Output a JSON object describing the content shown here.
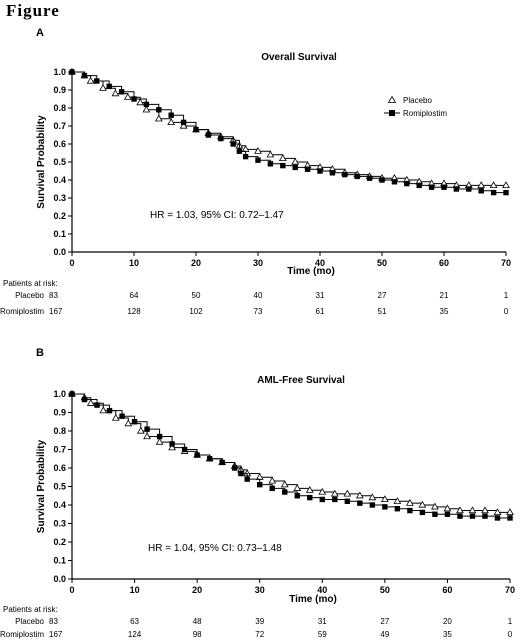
{
  "figure_label": "Figure",
  "chart_data": [
    {
      "type": "line",
      "panel_label": "A",
      "title": "Overall Survival",
      "xlabel": "Time (mo)",
      "ylabel": "Survival Probability",
      "xlim": [
        0,
        70
      ],
      "ylim": [
        0,
        1.0
      ],
      "x_ticks": [
        "0",
        "10",
        "20",
        "30",
        "40",
        "50",
        "60",
        "70"
      ],
      "y_ticks": [
        "0.0",
        "0.1",
        "0.2",
        "0.3",
        "0.4",
        "0.5",
        "0.6",
        "0.7",
        "0.8",
        "0.9",
        "1.0"
      ],
      "grid": false,
      "legend_position": "top-right",
      "annotation": "HR = 1.03, 95% CI: 0.72–1.47",
      "series": [
        {
          "name": "Placebo",
          "marker": "open-triangle",
          "color": "#000000",
          "x": [
            0,
            2,
            3,
            5,
            7,
            9,
            11,
            12,
            14,
            16,
            18,
            20,
            22,
            24,
            26,
            27,
            28,
            30,
            32,
            34,
            36,
            38,
            40,
            42,
            44,
            46,
            48,
            50,
            52,
            54,
            56,
            58,
            60,
            62,
            64,
            66,
            68,
            70
          ],
          "y": [
            1.0,
            0.98,
            0.95,
            0.91,
            0.88,
            0.86,
            0.83,
            0.79,
            0.74,
            0.72,
            0.7,
            0.68,
            0.66,
            0.64,
            0.62,
            0.59,
            0.57,
            0.56,
            0.54,
            0.52,
            0.5,
            0.48,
            0.47,
            0.46,
            0.44,
            0.43,
            0.42,
            0.41,
            0.41,
            0.4,
            0.39,
            0.38,
            0.38,
            0.37,
            0.37,
            0.37,
            0.37,
            0.37
          ]
        },
        {
          "name": "Romiplostim",
          "marker": "filled-square",
          "color": "#000000",
          "x": [
            0,
            2,
            4,
            6,
            8,
            10,
            12,
            14,
            16,
            18,
            20,
            22,
            24,
            26,
            27,
            28,
            30,
            32,
            34,
            36,
            38,
            40,
            42,
            44,
            46,
            48,
            50,
            52,
            54,
            56,
            58,
            60,
            62,
            64,
            66,
            68,
            70
          ],
          "y": [
            1.0,
            0.98,
            0.95,
            0.92,
            0.89,
            0.85,
            0.82,
            0.79,
            0.76,
            0.72,
            0.68,
            0.65,
            0.63,
            0.6,
            0.56,
            0.53,
            0.51,
            0.49,
            0.48,
            0.47,
            0.46,
            0.45,
            0.44,
            0.43,
            0.42,
            0.41,
            0.4,
            0.39,
            0.38,
            0.37,
            0.36,
            0.36,
            0.35,
            0.35,
            0.34,
            0.33,
            0.33
          ]
        }
      ],
      "at_risk": {
        "label": "Patients at risk:",
        "x": [
          10,
          20,
          30,
          40,
          50,
          60,
          70
        ],
        "rows": [
          {
            "name": "Placebo",
            "n": "83",
            "values": [
              "64",
              "50",
              "40",
              "31",
              "27",
              "21",
              "1"
            ]
          },
          {
            "name": "Romiplostim",
            "n": "167",
            "values": [
              "128",
              "102",
              "73",
              "61",
              "51",
              "35",
              "0"
            ]
          }
        ]
      }
    },
    {
      "type": "line",
      "panel_label": "B",
      "title": "AML-Free Survival",
      "xlabel": "Time (mo)",
      "ylabel": "Survival Probability",
      "xlim": [
        0,
        70
      ],
      "ylim": [
        0,
        1.0
      ],
      "x_ticks": [
        "0",
        "10",
        "20",
        "30",
        "40",
        "50",
        "60",
        "70"
      ],
      "y_ticks": [
        "0.0",
        "0.1",
        "0.2",
        "0.3",
        "0.4",
        "0.5",
        "0.6",
        "0.7",
        "0.8",
        "0.9",
        "1.0"
      ],
      "grid": false,
      "legend_position": "none",
      "annotation": "HR = 1.04, 95% CI: 0.73–1.48",
      "series": [
        {
          "name": "Placebo",
          "marker": "open-triangle",
          "color": "#000000",
          "x": [
            0,
            2,
            3,
            5,
            7,
            9,
            11,
            12,
            14,
            16,
            18,
            20,
            22,
            24,
            26,
            27,
            28,
            30,
            32,
            34,
            36,
            38,
            40,
            42,
            44,
            46,
            48,
            50,
            52,
            54,
            56,
            58,
            60,
            62,
            64,
            66,
            68,
            70
          ],
          "y": [
            1.0,
            0.98,
            0.95,
            0.91,
            0.87,
            0.84,
            0.8,
            0.77,
            0.74,
            0.71,
            0.69,
            0.67,
            0.65,
            0.63,
            0.61,
            0.59,
            0.57,
            0.55,
            0.53,
            0.51,
            0.49,
            0.48,
            0.47,
            0.46,
            0.46,
            0.45,
            0.44,
            0.43,
            0.42,
            0.41,
            0.4,
            0.39,
            0.38,
            0.37,
            0.37,
            0.37,
            0.36,
            0.36
          ]
        },
        {
          "name": "Romiplostim",
          "marker": "filled-square",
          "color": "#000000",
          "x": [
            0,
            2,
            4,
            6,
            8,
            10,
            12,
            14,
            16,
            18,
            20,
            22,
            24,
            26,
            27,
            28,
            30,
            32,
            34,
            36,
            38,
            40,
            42,
            44,
            46,
            48,
            50,
            52,
            54,
            56,
            58,
            60,
            62,
            64,
            66,
            68,
            70
          ],
          "y": [
            1.0,
            0.97,
            0.94,
            0.91,
            0.88,
            0.85,
            0.81,
            0.77,
            0.73,
            0.7,
            0.67,
            0.65,
            0.63,
            0.6,
            0.57,
            0.54,
            0.51,
            0.49,
            0.47,
            0.45,
            0.44,
            0.43,
            0.43,
            0.42,
            0.41,
            0.4,
            0.39,
            0.38,
            0.37,
            0.36,
            0.35,
            0.35,
            0.34,
            0.34,
            0.34,
            0.33,
            0.33
          ]
        }
      ],
      "at_risk": {
        "label": "Patients at risk:",
        "x": [
          10,
          20,
          30,
          40,
          50,
          60,
          70
        ],
        "rows": [
          {
            "name": "Placebo",
            "n": "83",
            "values": [
              "63",
              "48",
              "39",
              "31",
              "27",
              "20",
              "1"
            ]
          },
          {
            "name": "Romiplostim",
            "n": "167",
            "values": [
              "124",
              "98",
              "72",
              "59",
              "49",
              "35",
              "0"
            ]
          }
        ]
      }
    }
  ]
}
